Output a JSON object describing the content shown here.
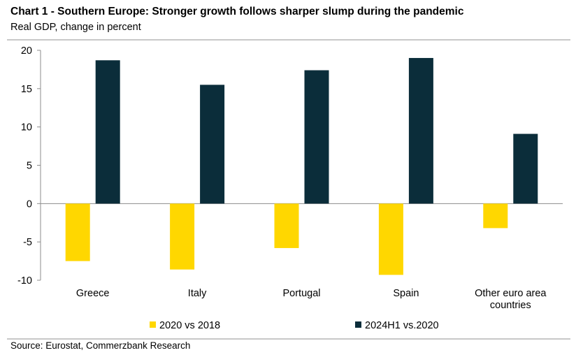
{
  "chart_data": {
    "type": "bar",
    "title": "Chart 1 - Southern Europe: Stronger growth follows sharper slump during the pandemic",
    "subtitle": "Real GDP, change in percent",
    "categories": [
      [
        "Greece"
      ],
      [
        "Italy"
      ],
      [
        "Portugal"
      ],
      [
        "Spain"
      ],
      [
        "Other euro area",
        "countries"
      ]
    ],
    "series": [
      {
        "name": "2020 vs 2018",
        "color": "#FFD700",
        "values": [
          -7.5,
          -8.6,
          -5.8,
          -9.3,
          -3.2
        ]
      },
      {
        "name": "2024H1 vs.2020",
        "color": "#0B2D3A",
        "values": [
          18.7,
          15.5,
          17.4,
          19.0,
          9.1
        ]
      }
    ],
    "ylim": [
      -10,
      20
    ],
    "yticks": [
      20,
      15,
      10,
      5,
      0,
      -5,
      -10
    ],
    "xlabel": "",
    "ylabel": "",
    "grid": false,
    "legend": "bottom-center"
  },
  "source": "Source: Eurostat, Commerzbank Research"
}
